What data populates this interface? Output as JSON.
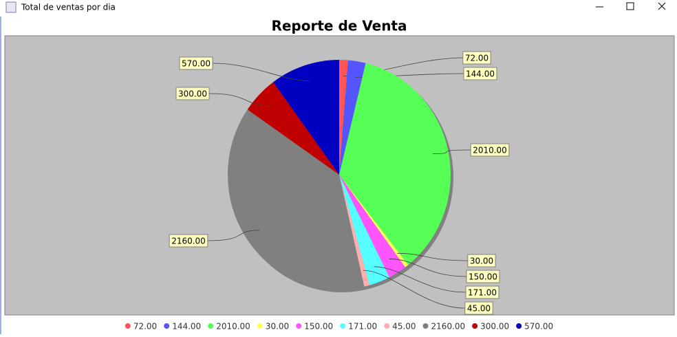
{
  "window": {
    "title": "Total de ventas por dia"
  },
  "chart_data": {
    "type": "pie",
    "title": "Reporte de Venta",
    "categories": [
      "72.00",
      "144.00",
      "2010.00",
      "30.00",
      "150.00",
      "171.00",
      "45.00",
      "2160.00",
      "300.00",
      "570.00"
    ],
    "values": [
      72,
      144,
      2010,
      30,
      150,
      171,
      45,
      2160,
      300,
      570
    ],
    "value_labels": [
      "72.00",
      "144.00",
      "2010.00",
      "30.00",
      "150.00",
      "171.00",
      "45.00",
      "2160.00",
      "300.00",
      "570.00"
    ],
    "colors": [
      "#ff5555",
      "#5555ff",
      "#55ff55",
      "#ffff55",
      "#ff55ff",
      "#55ffff",
      "#ffafaf",
      "#808080",
      "#c00000",
      "#0000c0"
    ],
    "legend": "bottom"
  }
}
